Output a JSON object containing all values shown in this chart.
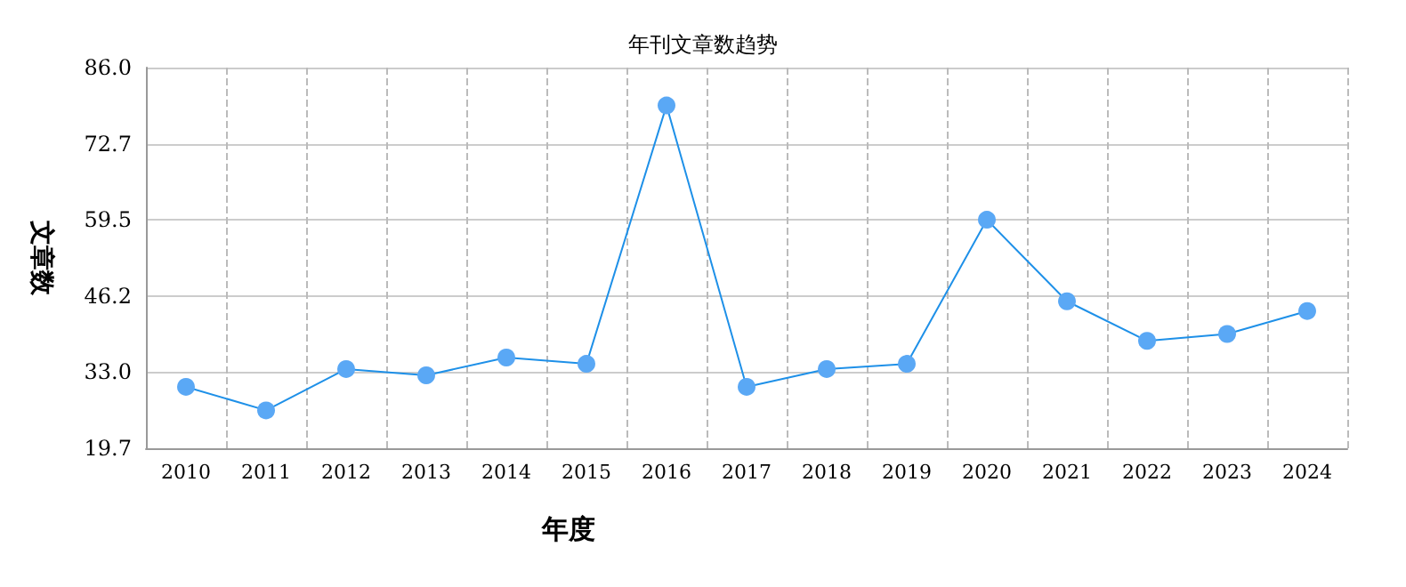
{
  "chart_data": {
    "type": "line",
    "title": "年刊文章数趋势",
    "xlabel": "年度",
    "ylabel": "文章数",
    "categories": [
      "2010",
      "2011",
      "2012",
      "2013",
      "2014",
      "2015",
      "2016",
      "2017",
      "2018",
      "2019",
      "2020",
      "2021",
      "2022",
      "2023",
      "2024"
    ],
    "series": [
      {
        "color": "#1e90e8",
        "values": [
          30.4,
          26.3,
          33.5,
          32.4,
          35.5,
          34.4,
          79.4,
          30.4,
          33.5,
          34.4,
          59.5,
          45.3,
          38.4,
          39.6,
          43.6
        ]
      }
    ],
    "ylim": [
      19.7,
      86.0
    ],
    "yticks": [
      {
        "value": 19.7,
        "label": "19.7"
      },
      {
        "value": 33.0,
        "label": "33.0"
      },
      {
        "value": 46.2,
        "label": "46.2"
      },
      {
        "value": 59.5,
        "label": "59.5"
      },
      {
        "value": 72.7,
        "label": "72.7"
      },
      {
        "value": 86.0,
        "label": "86.0"
      }
    ],
    "grid": true,
    "marker": "circle",
    "line_style": "solid"
  }
}
